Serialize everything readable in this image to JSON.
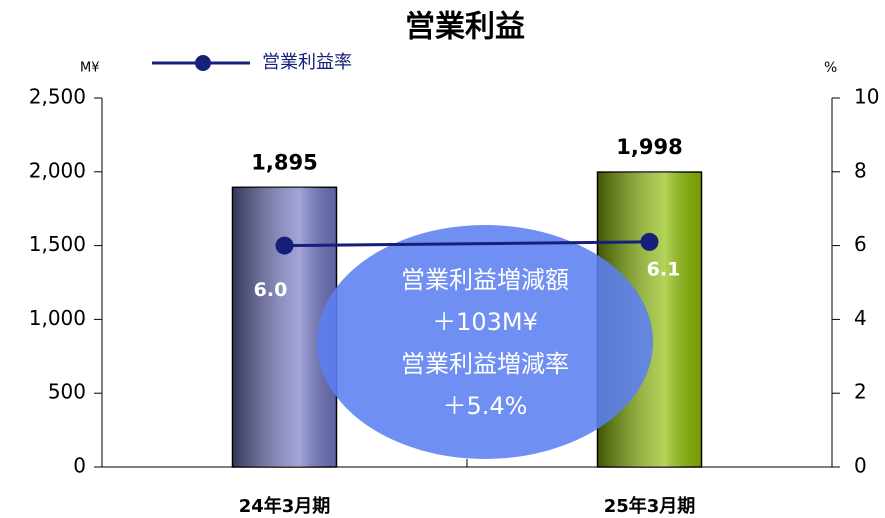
{
  "chart_data": {
    "type": "bar_line",
    "title": "営業利益",
    "y_unit": "M¥",
    "y2_unit": "%",
    "categories": [
      "24年3月期",
      "25年3月期"
    ],
    "series": [
      {
        "type": "bar",
        "colors": [
          "#7074c2",
          "#8cbc00"
        ],
        "values": [
          1895,
          1998
        ],
        "value_labels": [
          "1,895",
          "1,998"
        ]
      },
      {
        "type": "line",
        "name": "営業利益率",
        "color": "#14207a",
        "axis": "y2",
        "values": [
          6.0,
          6.1
        ],
        "value_labels": [
          "6.0",
          "6.1"
        ]
      }
    ],
    "ylim": [
      0,
      2500
    ],
    "yticks": [
      0,
      500,
      {
        "value": 1000,
        "label": "1,000"
      },
      {
        "value": 1500,
        "label": "1,500"
      },
      {
        "value": 2000,
        "label": "2,000"
      },
      {
        "value": 2500,
        "label": "2,500"
      }
    ],
    "y2lim": [
      0,
      10
    ],
    "y2ticks": [
      0,
      2,
      4,
      6,
      8,
      10
    ],
    "annotations": [
      "営業利益増減額",
      "＋103M¥",
      "営業利益増減率",
      "＋5.4%"
    ],
    "grid": false
  }
}
